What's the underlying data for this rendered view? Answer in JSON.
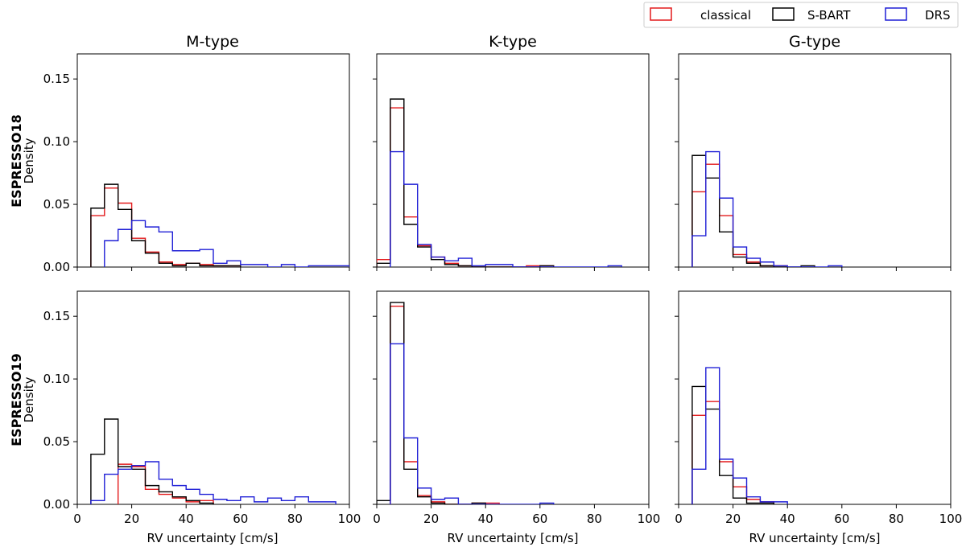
{
  "legend": {
    "placement": "top-right, above panels",
    "entries": [
      {
        "label": "classical",
        "color": "#e31a1c"
      },
      {
        "label": "S-BART",
        "color": "#000000"
      },
      {
        "label": "DRS",
        "color": "#1f1fd6"
      }
    ]
  },
  "y_axis_title": "Density",
  "x_axis_title": "RV uncertainty [cm/s]",
  "chart_data": {
    "type": "histogram-step",
    "xlim": [
      0,
      100
    ],
    "ylim": [
      0,
      0.17
    ],
    "xticks": [
      0,
      20,
      40,
      60,
      80,
      100
    ],
    "yticks": [
      "0.00",
      "0.05",
      "0.10",
      "0.15"
    ],
    "columns": [
      "M-type",
      "K-type",
      "G-type"
    ],
    "rows": [
      "ESPRESSO18",
      "ESPRESSO19"
    ],
    "panels": [
      {
        "row": 0,
        "col": 0,
        "series": [
          {
            "name": "classical",
            "color": "#e31a1c",
            "edges": [
              5,
              10,
              15,
              20,
              25,
              30,
              35,
              40,
              45,
              50,
              55,
              60
            ],
            "values": [
              0.041,
              0.063,
              0.051,
              0.023,
              0.012,
              0.004,
              0.002,
              0.003,
              0.002,
              0.001,
              0.001
            ]
          },
          {
            "name": "S-BART",
            "color": "#000000",
            "edges": [
              5,
              10,
              15,
              20,
              25,
              30,
              35,
              40,
              45,
              50,
              55,
              60
            ],
            "values": [
              0.047,
              0.066,
              0.046,
              0.021,
              0.011,
              0.003,
              0.001,
              0.003,
              0.001,
              0.001,
              0.001
            ]
          },
          {
            "name": "DRS",
            "color": "#1f1fd6",
            "edges": [
              10,
              15,
              20,
              25,
              30,
              35,
              40,
              45,
              50,
              55,
              60,
              65,
              70,
              75,
              80,
              85,
              90,
              95,
              100
            ],
            "values": [
              0.021,
              0.03,
              0.037,
              0.032,
              0.028,
              0.013,
              0.013,
              0.014,
              0.003,
              0.005,
              0.002,
              0.002,
              0.0,
              0.002,
              0.0,
              0.001,
              0.001,
              0.001
            ]
          }
        ]
      },
      {
        "row": 0,
        "col": 1,
        "series": [
          {
            "name": "classical",
            "color": "#e31a1c",
            "edges": [
              0,
              5,
              10,
              15,
              20,
              25,
              30,
              35,
              40,
              45,
              50,
              55,
              60,
              65
            ],
            "values": [
              0.006,
              0.127,
              0.04,
              0.017,
              0.008,
              0.003,
              0.001,
              0.0,
              0.0,
              0.0,
              0.0,
              0.001,
              0.001
            ]
          },
          {
            "name": "S-BART",
            "color": "#000000",
            "edges": [
              0,
              5,
              10,
              15,
              20,
              25,
              30,
              35,
              40,
              45,
              50,
              55,
              60,
              65
            ],
            "values": [
              0.003,
              0.134,
              0.034,
              0.016,
              0.006,
              0.002,
              0.001,
              0.0,
              0.0,
              0.0,
              0.0,
              0.0,
              0.001
            ]
          },
          {
            "name": "DRS",
            "color": "#1f1fd6",
            "edges": [
              5,
              10,
              15,
              20,
              25,
              30,
              35,
              40,
              45,
              50,
              55,
              60,
              65,
              70,
              75,
              80,
              85,
              90
            ],
            "values": [
              0.092,
              0.066,
              0.018,
              0.008,
              0.005,
              0.007,
              0.001,
              0.002,
              0.002,
              0.0,
              0.0,
              0.0,
              0.0,
              0.0,
              0.0,
              0.0,
              0.001
            ]
          }
        ]
      },
      {
        "row": 0,
        "col": 2,
        "series": [
          {
            "name": "classical",
            "color": "#e31a1c",
            "edges": [
              5,
              10,
              15,
              20,
              25,
              30,
              35,
              40
            ],
            "values": [
              0.06,
              0.082,
              0.041,
              0.01,
              0.004,
              0.001,
              0.001
            ]
          },
          {
            "name": "S-BART",
            "color": "#000000",
            "edges": [
              5,
              10,
              15,
              20,
              25,
              30,
              35,
              40,
              45,
              50
            ],
            "values": [
              0.089,
              0.071,
              0.028,
              0.008,
              0.003,
              0.001,
              0.0,
              0.0,
              0.001
            ]
          },
          {
            "name": "DRS",
            "color": "#1f1fd6",
            "edges": [
              5,
              10,
              15,
              20,
              25,
              30,
              35,
              40,
              45,
              50,
              55,
              60
            ],
            "values": [
              0.025,
              0.092,
              0.055,
              0.016,
              0.007,
              0.004,
              0.001,
              0.0,
              0.0,
              0.0,
              0.001
            ]
          }
        ]
      },
      {
        "row": 1,
        "col": 0,
        "series": [
          {
            "name": "classical",
            "color": "#e31a1c",
            "edges": [
              15,
              20,
              25,
              30,
              35,
              40,
              45,
              50
            ],
            "values": [
              0.032,
              0.03,
              0.012,
              0.008,
              0.005,
              0.002,
              0.003
            ]
          },
          {
            "name": "S-BART",
            "color": "#000000",
            "edges": [
              5,
              10,
              15,
              20,
              25,
              30,
              35,
              40,
              45,
              50
            ],
            "values": [
              0.04,
              0.068,
              0.03,
              0.028,
              0.015,
              0.01,
              0.006,
              0.003,
              0.001
            ]
          },
          {
            "name": "DRS",
            "color": "#1f1fd6",
            "edges": [
              5,
              10,
              15,
              20,
              25,
              30,
              35,
              40,
              45,
              50,
              55,
              60,
              65,
              70,
              75,
              80,
              85,
              90,
              95
            ],
            "values": [
              0.003,
              0.024,
              0.028,
              0.031,
              0.034,
              0.02,
              0.015,
              0.012,
              0.008,
              0.004,
              0.003,
              0.006,
              0.002,
              0.005,
              0.003,
              0.006,
              0.002,
              0.002
            ]
          }
        ]
      },
      {
        "row": 1,
        "col": 1,
        "series": [
          {
            "name": "classical",
            "color": "#e31a1c",
            "edges": [
              5,
              10,
              15,
              20,
              25,
              30,
              35,
              40,
              45
            ],
            "values": [
              0.158,
              0.034,
              0.007,
              0.002,
              0.0,
              0.0,
              0.001,
              0.001
            ]
          },
          {
            "name": "S-BART",
            "color": "#000000",
            "edges": [
              0,
              5,
              10,
              15,
              20,
              25,
              30,
              35,
              40
            ],
            "values": [
              0.003,
              0.161,
              0.028,
              0.006,
              0.001,
              0.0,
              0.0,
              0.001
            ]
          },
          {
            "name": "DRS",
            "color": "#1f1fd6",
            "edges": [
              5,
              10,
              15,
              20,
              25,
              30,
              35,
              40,
              45,
              50,
              55,
              60,
              65
            ],
            "values": [
              0.128,
              0.053,
              0.013,
              0.004,
              0.005,
              0.0,
              0.0,
              0.0,
              0.0,
              0.0,
              0.0,
              0.001
            ]
          }
        ]
      },
      {
        "row": 1,
        "col": 2,
        "series": [
          {
            "name": "classical",
            "color": "#e31a1c",
            "edges": [
              5,
              10,
              15,
              20,
              25,
              30,
              35
            ],
            "values": [
              0.071,
              0.082,
              0.034,
              0.014,
              0.004,
              0.002
            ]
          },
          {
            "name": "S-BART",
            "color": "#000000",
            "edges": [
              5,
              10,
              15,
              20,
              25,
              30,
              35
            ],
            "values": [
              0.094,
              0.076,
              0.023,
              0.005,
              0.001,
              0.001
            ]
          },
          {
            "name": "DRS",
            "color": "#1f1fd6",
            "edges": [
              5,
              10,
              15,
              20,
              25,
              30,
              35,
              40
            ],
            "values": [
              0.028,
              0.109,
              0.036,
              0.021,
              0.006,
              0.002,
              0.002
            ]
          }
        ]
      }
    ]
  }
}
